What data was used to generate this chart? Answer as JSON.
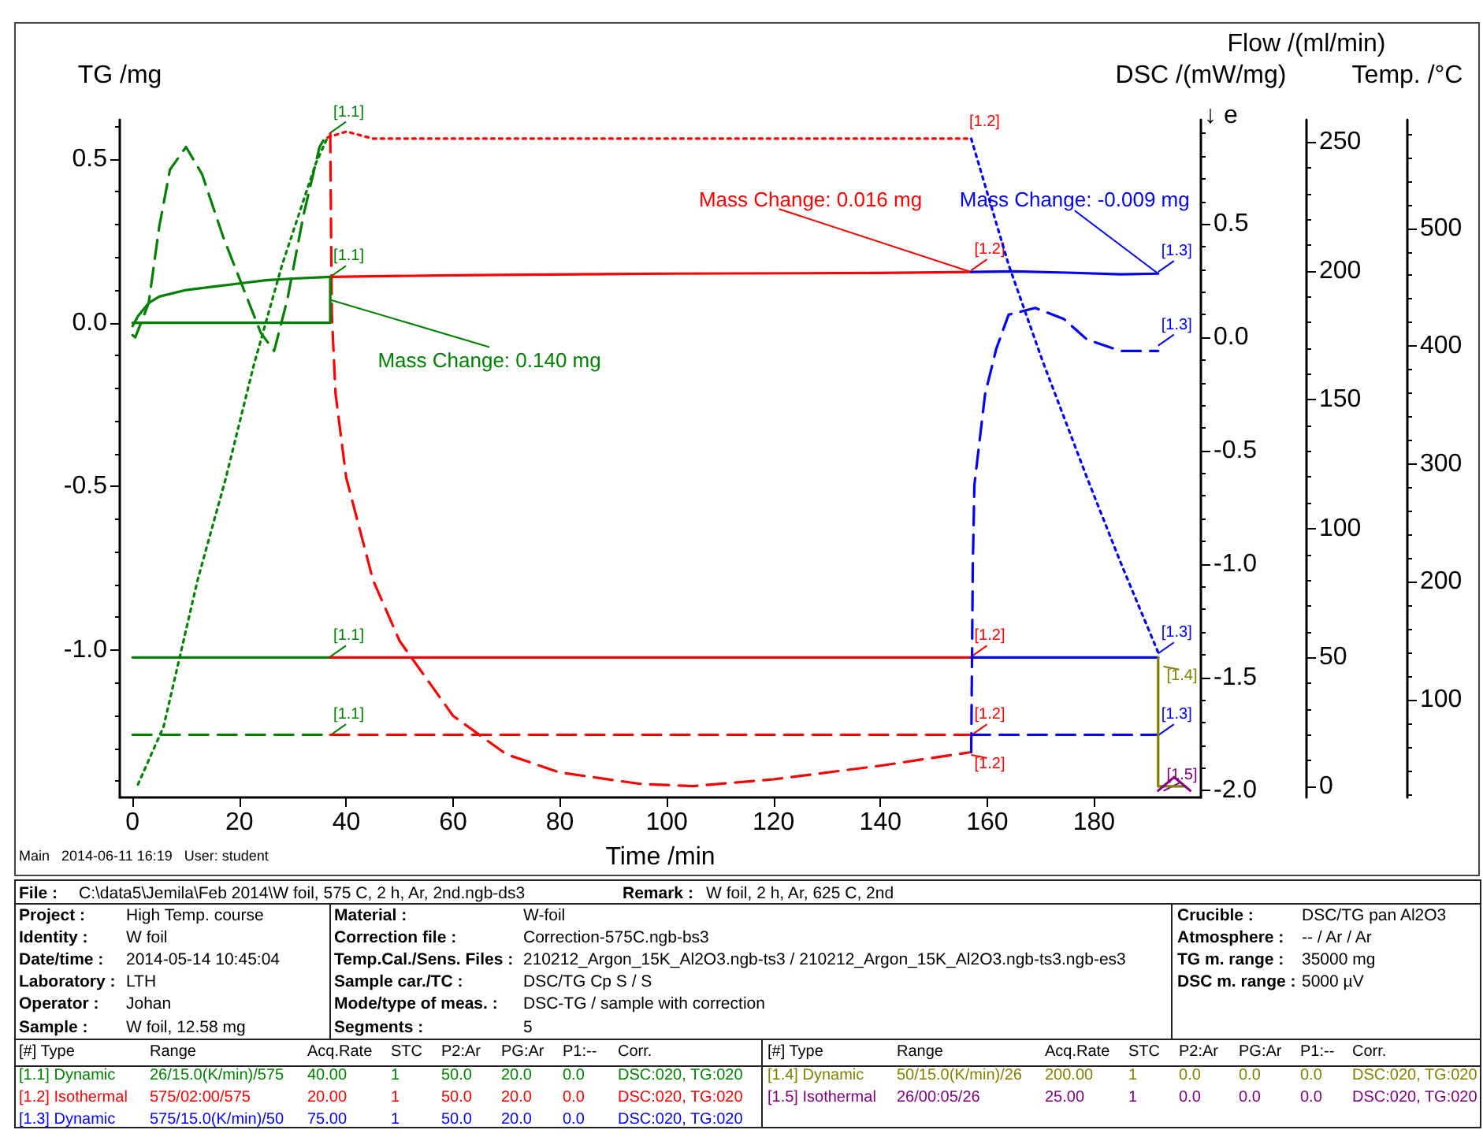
{
  "chart_data": [
    {
      "type": "line",
      "xlabel": "Time /min",
      "ylabel": "TG /mg",
      "y2label": "DSC /(mW/mg)",
      "y3label": "Flow /(ml/min)",
      "xlim": [
        -2.4,
        200
      ],
      "xticks": [
        0,
        20,
        40,
        60,
        80,
        100,
        120,
        140,
        160,
        180
      ],
      "ylim": [
        -1.45,
        0.62
      ],
      "yticks": [
        {
          "value": -1,
          "label": "-1.0"
        },
        -0.5,
        {
          "value": 0,
          "label": "0.0"
        },
        0.5
      ],
      "y2lim": [
        -2.03,
        0.96
      ],
      "y2ticks": [
        {
          "value": -2,
          "label": "-2.0"
        },
        -1.5,
        {
          "value": -1,
          "label": "-1.0"
        },
        -0.5,
        {
          "value": 0,
          "label": "0.0"
        },
        0.5
      ],
      "y3lim": [
        -4.3,
        258.6
      ],
      "y3ticks": [
        0,
        50,
        100,
        150,
        200,
        250
      ],
      "marker": "none",
      "series": [
        {
          "color": "#008000",
          "line_style": "solid",
          "x": [
            0,
            1,
            3,
            5,
            10,
            15,
            20,
            25,
            30,
            37
          ],
          "values": [
            -0.01,
            0.02,
            0.06,
            0.08,
            0.1,
            0.11,
            0.12,
            0.13,
            0.135,
            0.14
          ]
        },
        {
          "color": "#ff0000",
          "line_style": "solid",
          "x": [
            37,
            60,
            100,
            140,
            157
          ],
          "values": [
            0.14,
            0.145,
            0.15,
            0.152,
            0.155
          ]
        },
        {
          "color": "#0000ff",
          "line_style": "solid",
          "x": [
            157,
            165,
            175,
            185,
            192
          ],
          "values": [
            0.155,
            0.157,
            0.153,
            0.148,
            0.15
          ]
        },
        {
          "color": "#008000",
          "axis": "y2",
          "line_style": "dashed",
          "x": [
            0,
            0.5,
            3,
            5,
            7,
            10,
            13,
            17,
            21,
            24,
            26.5,
            29,
            32,
            35,
            36.5
          ],
          "values": [
            0.01,
            0,
            0.15,
            0.49,
            0.74,
            0.84,
            0.72,
            0.44,
            0.2,
            0.02,
            -0.06,
            0.17,
            0.54,
            0.84,
            0.9
          ]
        },
        {
          "color": "#ff0000",
          "axis": "y2",
          "line_style": "dashed",
          "x": [
            37,
            37.3,
            38,
            40,
            45,
            50,
            60,
            70,
            80,
            95,
            105,
            120,
            140,
            157
          ],
          "values": [
            0.9,
            0.1,
            -0.25,
            -0.62,
            -1.07,
            -1.34,
            -1.67,
            -1.84,
            -1.92,
            -1.97,
            -1.98,
            -1.95,
            -1.89,
            -1.83
          ]
        },
        {
          "color": "#0000ff",
          "axis": "y2",
          "line_style": "dashed",
          "x": [
            157,
            157.3,
            157.6,
            159.6,
            161.7,
            164,
            169,
            174.4,
            178.7,
            185,
            192
          ],
          "values": [
            -1.83,
            -1,
            -0.65,
            -0.25,
            -0.05,
            0.1,
            0.13,
            0.08,
            -0.01,
            -0.06,
            -0.06
          ]
        },
        {
          "color": "#008000",
          "axis": "y3",
          "line_style": "solid",
          "x": [
            0,
            37
          ],
          "values": [
            50,
            50
          ]
        },
        {
          "color": "#ff0000",
          "axis": "y3",
          "line_style": "solid",
          "x": [
            37,
            157
          ],
          "values": [
            50,
            50
          ]
        },
        {
          "color": "#0000ff",
          "axis": "y3",
          "line_style": "solid",
          "x": [
            157,
            192
          ],
          "values": [
            50,
            50
          ]
        },
        {
          "color": "#008000",
          "axis": "y3",
          "line_style": "dashed",
          "x": [
            0,
            37
          ],
          "values": [
            20,
            20
          ]
        },
        {
          "color": "#ff0000",
          "axis": "y3",
          "line_style": "dashed",
          "x": [
            37,
            157
          ],
          "values": [
            20,
            20
          ]
        },
        {
          "color": "#0000ff",
          "axis": "y3",
          "line_style": "dashed",
          "x": [
            157,
            192
          ],
          "values": [
            20,
            20
          ]
        },
        {
          "color": "#808000",
          "axis": "y3",
          "line_style": "solid",
          "x": [
            192,
            192,
            197
          ],
          "values": [
            50,
            0,
            0
          ]
        },
        {
          "color": "#800080",
          "axis": "y2",
          "line_style": "solid",
          "x": [
            192,
            195,
            198
          ],
          "values": [
            -2,
            -1.94,
            -2
          ]
        },
        {
          "color": "#008000",
          "line_style": "solid",
          "x": [
            0,
            37,
            37
          ],
          "values": [
            0,
            0,
            0.14
          ]
        }
      ],
      "annotations": [
        {
          "text": "[1.1]",
          "x": 37,
          "y": 0.58
        },
        {
          "text": "[1.1]",
          "x": 37,
          "y": 0.14
        },
        {
          "text": "[1.1]",
          "x": 37,
          "y": -1.02
        },
        {
          "text": "[1.1]",
          "x": 37,
          "y": -1.26
        },
        {
          "text": "[1.2]",
          "x": 157,
          "y": 0.16
        },
        {
          "text": "[1.2]",
          "x": 157,
          "y": -1.02
        },
        {
          "text": "[1.2]",
          "x": 157,
          "y": -1.26
        },
        {
          "text": "[1.2]",
          "x": 157,
          "y": -1.32
        },
        {
          "text": "[1.3]",
          "x": 192,
          "y": 0.155
        },
        {
          "text": "[1.3]",
          "x": 192,
          "y": -0.07
        },
        {
          "text": "[1.3]",
          "x": 192,
          "y": -1.01
        },
        {
          "text": "[1.3]",
          "x": 192,
          "y": -1.26
        },
        {
          "text": "[1.4]",
          "x": 193,
          "y": -1.05
        },
        {
          "text": "[1.5]",
          "x": 193,
          "y": -1.43
        },
        {
          "text": "Mass Change: 0.140 mg",
          "x": 37,
          "y": 0.07
        },
        {
          "text": "Mass Change: 0.016 mg",
          "x": 157,
          "y": 0.155
        },
        {
          "text": "Mass Change: -0.009 mg",
          "x": 192,
          "y": 0.15
        },
        "Main   2014-06-11 16:19   User: student",
        "File :",
        "C:\\data5\\Jemila\\Feb 2014\\W foil, 575 C, 2 h, Ar, 2nd.ngb-ds3",
        "Remark :",
        "W foil, 2 h, Ar, 625 C, 2nd",
        "Project :",
        "High Temp. course",
        "Identity :",
        "W foil",
        "Date/time :",
        "2014-05-14 10:45:04",
        "Laboratory :",
        "LTH",
        "Operator :",
        "Johan",
        "Sample :",
        "W foil, 12.58 mg",
        "Material :",
        "W-foil",
        "Correction file :",
        "Correction-575C.ngb-bs3",
        "Temp.Cal./Sens. Files :",
        "210212_Argon_15K_Al2O3.ngb-ts3 / 210212_Argon_15K_Al2O3.ngb-ts3.ngb-es3",
        "Sample car./TC :",
        "DSC/TG Cp S / S",
        "Mode/type of meas. :",
        "DSC-TG / sample with correction",
        "Segments :",
        "5",
        "Crucible :",
        "DSC/TG pan Al2O3",
        "Atmosphere :",
        "-- / Ar / Ar",
        "TG m. range :",
        "35000 mg",
        "DSC m. range :",
        "5000 µV",
        "[#] Type",
        "Range",
        "Acq.Rate",
        "STC",
        "P2:Ar",
        "PG:Ar",
        "P1:--",
        "Corr.",
        "[#] Type",
        "Range",
        "Acq.Rate",
        "STC",
        "P2:Ar",
        "PG:Ar",
        "P1:--",
        "Corr.",
        "[1.1] Dynamic",
        "26/15.0(K/min)/575",
        "40.00",
        "1",
        "50.0",
        "20.0",
        "0.0",
        "DSC:020, TG:020",
        "[1.2] Isothermal",
        "575/02:00/575",
        "20.00",
        "1",
        "50.0",
        "20.0",
        "0.0",
        "DSC:020, TG:020",
        "[1.3] Dynamic",
        "575/15.0(K/min)/50",
        "75.00",
        "1",
        "50.0",
        "20.0",
        "0.0",
        "DSC:020, TG:020",
        "[1.4] Dynamic",
        "50/15.0(K/min)/26",
        "200.00",
        "1",
        "0.0",
        "0.0",
        "0.0",
        "DSC:020, TG:020",
        "[1.5] Isothermal",
        "26/00:05/26",
        "25.00",
        "1",
        "0.0",
        "0.0",
        "0.0",
        "DSC:020, TG:020",
        "↓ e",
        "[1.2]"
      ]
    },
    {
      "type": "line",
      "ylabel": "Temp. /°C",
      "xlim": [
        -2.4,
        200
      ],
      "ylim": [
        17,
        592
      ],
      "yticks": [
        100,
        200,
        300,
        400,
        500
      ],
      "tick_labels": "y",
      "marker": "none",
      "series": [
        {
          "color": "#008000",
          "line_style": "dotted",
          "x": [
            1,
            5.8,
            12.2,
            17.4,
            22.7,
            28,
            34.3,
            36.5
          ],
          "values": [
            28,
            77,
            202,
            287,
            384,
            469,
            555,
            577
          ]
        },
        {
          "color": "#ff0000",
          "line_style": "dotted",
          "x": [
            36.5,
            40,
            45,
            157
          ],
          "values": [
            577,
            582,
            576,
            576
          ]
        },
        {
          "color": "#0000ff",
          "line_style": "dotted",
          "x": [
            157,
            164,
            170.3,
            178.7,
            185,
            192
          ],
          "values": [
            576,
            469,
            388,
            288,
            216,
            140
          ]
        }
      ]
    }
  ]
}
